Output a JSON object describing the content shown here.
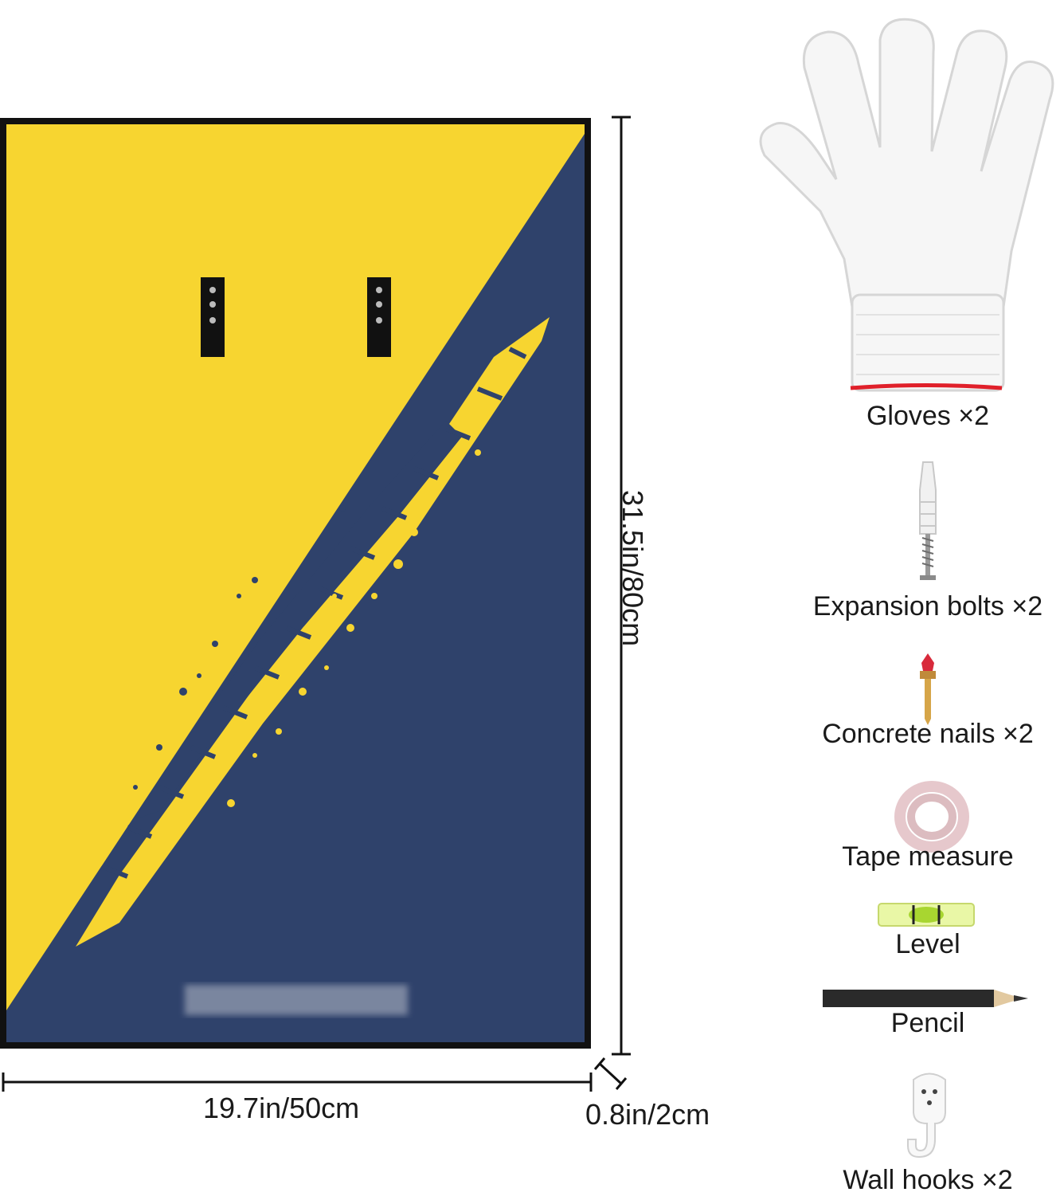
{
  "artwork": {
    "colors": {
      "yellow": "#f7d530",
      "navy": "#2f426b",
      "frame": "#111111"
    },
    "brand_mark_blurred": "WAWLOW"
  },
  "dimensions": {
    "width": "19.7in/50cm",
    "height": "31.5in/80cm",
    "depth": "0.8in/2cm"
  },
  "accessories": [
    {
      "label": "Gloves ×2",
      "icon": "glove-icon"
    },
    {
      "label": "Expansion bolts ×2",
      "icon": "expansion-bolt-icon"
    },
    {
      "label": "Concrete nails ×2",
      "icon": "concrete-nail-icon"
    },
    {
      "label": "Tape measure",
      "icon": "tape-measure-icon"
    },
    {
      "label": "Level",
      "icon": "level-icon"
    },
    {
      "label": "Pencil",
      "icon": "pencil-icon"
    },
    {
      "label": "Wall hooks ×2",
      "icon": "wall-hook-icon"
    }
  ]
}
